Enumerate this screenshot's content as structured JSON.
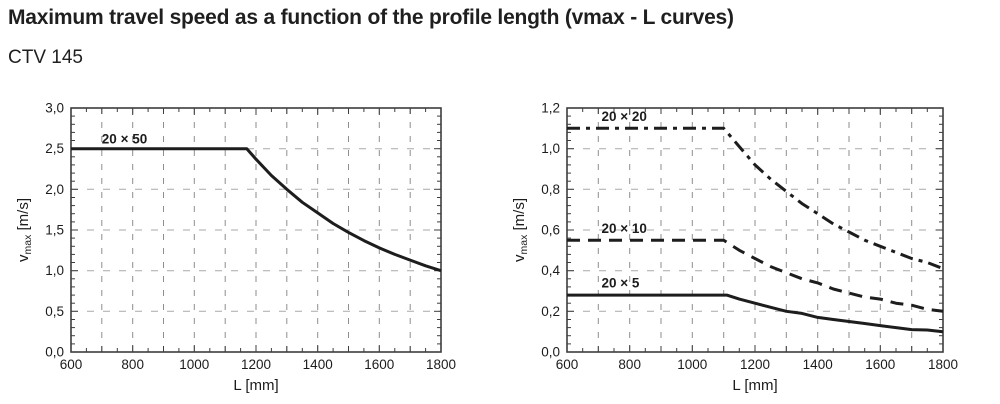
{
  "page": {
    "title": "Maximum travel speed as a function of the profile length (vmax - L curves)",
    "subtitle": "CTV 145"
  },
  "colors": {
    "curve": "#1d1d1d",
    "grid_vertical": "#8e8e8e",
    "grid_horizontal": "#a9a9a9",
    "frame": "#3d3d3d",
    "text": "#1c1c1c"
  },
  "chart_data": [
    {
      "type": "line",
      "id": "vmax-L-left",
      "xlabel": "L [mm]",
      "ylabel": {
        "prefix": "v",
        "sub": "max",
        "suffix": " [m/s]"
      },
      "xlim": [
        600,
        1800
      ],
      "ylim": [
        0,
        3.0
      ],
      "grid": true,
      "x_minor_step": 50,
      "x_grid_step": 100,
      "y_minor_step": 0.1,
      "x_ticks": [
        {
          "v": 600,
          "label": "600"
        },
        {
          "v": 800,
          "label": "800"
        },
        {
          "v": 1000,
          "label": "1000"
        },
        {
          "v": 1200,
          "label": "1200"
        },
        {
          "v": 1400,
          "label": "1400"
        },
        {
          "v": 1600,
          "label": "1600"
        },
        {
          "v": 1800,
          "label": "1800"
        }
      ],
      "y_ticks": [
        {
          "v": 0.0,
          "label": "0,0"
        },
        {
          "v": 0.5,
          "label": "0,5"
        },
        {
          "v": 1.0,
          "label": "1,0"
        },
        {
          "v": 1.5,
          "label": "1,5"
        },
        {
          "v": 2.0,
          "label": "2,0"
        },
        {
          "v": 2.5,
          "label": "2,5"
        },
        {
          "v": 3.0,
          "label": "3,0"
        }
      ],
      "series": [
        {
          "name": "20 × 50",
          "dash": "solid",
          "label_at": [
            700,
            2.565
          ],
          "points": [
            [
              600,
              2.5
            ],
            [
              1170,
              2.5
            ],
            [
              1200,
              2.37
            ],
            [
              1250,
              2.17
            ],
            [
              1300,
              2.0
            ],
            [
              1350,
              1.84
            ],
            [
              1400,
              1.71
            ],
            [
              1450,
              1.58
            ],
            [
              1500,
              1.47
            ],
            [
              1550,
              1.37
            ],
            [
              1600,
              1.28
            ],
            [
              1650,
              1.2
            ],
            [
              1700,
              1.13
            ],
            [
              1750,
              1.06
            ],
            [
              1800,
              1.0
            ]
          ]
        }
      ]
    },
    {
      "type": "line",
      "id": "vmax-L-right",
      "xlabel": "L [mm]",
      "ylabel": {
        "prefix": "v",
        "sub": "max",
        "suffix": " [m/s]"
      },
      "xlim": [
        600,
        1800
      ],
      "ylim": [
        0,
        1.2
      ],
      "grid": true,
      "x_minor_step": 50,
      "x_grid_step": 100,
      "y_minor_step": 0.04,
      "x_ticks": [
        {
          "v": 600,
          "label": "600"
        },
        {
          "v": 800,
          "label": "800"
        },
        {
          "v": 1000,
          "label": "1000"
        },
        {
          "v": 1200,
          "label": "1200"
        },
        {
          "v": 1400,
          "label": "1400"
        },
        {
          "v": 1600,
          "label": "1600"
        },
        {
          "v": 1800,
          "label": "1800"
        }
      ],
      "y_ticks": [
        {
          "v": 0.0,
          "label": "0,0"
        },
        {
          "v": 0.2,
          "label": "0,2"
        },
        {
          "v": 0.4,
          "label": "0,4"
        },
        {
          "v": 0.6,
          "label": "0,6"
        },
        {
          "v": 0.8,
          "label": "0,8"
        },
        {
          "v": 1.0,
          "label": "1,0"
        },
        {
          "v": 1.2,
          "label": "1,2"
        }
      ],
      "series": [
        {
          "name": "20 × 20",
          "dash": "13,6,4,6",
          "label_at": [
            710,
            1.135
          ],
          "points": [
            [
              600,
              1.1
            ],
            [
              1100,
              1.1
            ],
            [
              1150,
              1.01
            ],
            [
              1200,
              0.92
            ],
            [
              1250,
              0.85
            ],
            [
              1300,
              0.79
            ],
            [
              1350,
              0.73
            ],
            [
              1400,
              0.68
            ],
            [
              1450,
              0.63
            ],
            [
              1500,
              0.59
            ],
            [
              1550,
              0.55
            ],
            [
              1600,
              0.52
            ],
            [
              1650,
              0.49
            ],
            [
              1700,
              0.46
            ],
            [
              1750,
              0.44
            ],
            [
              1800,
              0.41
            ]
          ]
        },
        {
          "name": "20 × 10",
          "dash": "13,8",
          "label_at": [
            710,
            0.585
          ],
          "points": [
            [
              600,
              0.55
            ],
            [
              1100,
              0.55
            ],
            [
              1150,
              0.5
            ],
            [
              1200,
              0.46
            ],
            [
              1250,
              0.42
            ],
            [
              1300,
              0.39
            ],
            [
              1350,
              0.36
            ],
            [
              1400,
              0.34
            ],
            [
              1450,
              0.31
            ],
            [
              1500,
              0.29
            ],
            [
              1550,
              0.27
            ],
            [
              1600,
              0.26
            ],
            [
              1650,
              0.24
            ],
            [
              1700,
              0.23
            ],
            [
              1750,
              0.21
            ],
            [
              1800,
              0.2
            ]
          ]
        },
        {
          "name": "20 × 5",
          "dash": "solid",
          "label_at": [
            710,
            0.318
          ],
          "points": [
            [
              600,
              0.28
            ],
            [
              1110,
              0.28
            ],
            [
              1150,
              0.26
            ],
            [
              1200,
              0.24
            ],
            [
              1250,
              0.22
            ],
            [
              1300,
              0.2
            ],
            [
              1350,
              0.19
            ],
            [
              1400,
              0.17
            ],
            [
              1450,
              0.16
            ],
            [
              1500,
              0.15
            ],
            [
              1550,
              0.14
            ],
            [
              1600,
              0.13
            ],
            [
              1650,
              0.12
            ],
            [
              1700,
              0.11
            ],
            [
              1750,
              0.108
            ],
            [
              1800,
              0.1
            ]
          ]
        }
      ]
    }
  ]
}
